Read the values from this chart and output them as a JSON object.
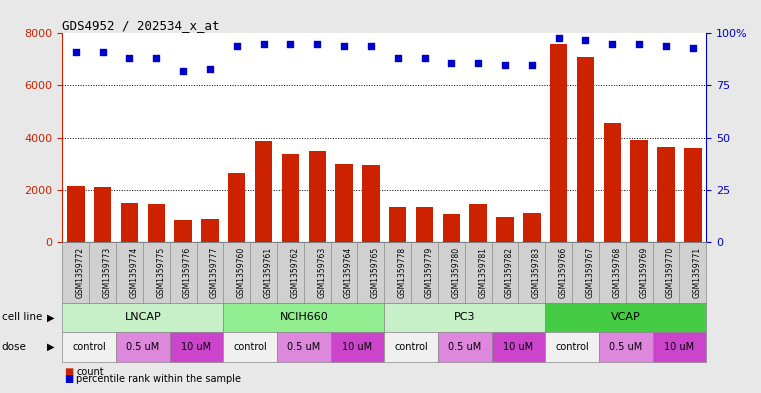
{
  "title": "GDS4952 / 202534_x_at",
  "samples": [
    "GSM1359772",
    "GSM1359773",
    "GSM1359774",
    "GSM1359775",
    "GSM1359776",
    "GSM1359777",
    "GSM1359760",
    "GSM1359761",
    "GSM1359762",
    "GSM1359763",
    "GSM1359764",
    "GSM1359765",
    "GSM1359778",
    "GSM1359779",
    "GSM1359780",
    "GSM1359781",
    "GSM1359782",
    "GSM1359783",
    "GSM1359766",
    "GSM1359767",
    "GSM1359768",
    "GSM1359769",
    "GSM1359770",
    "GSM1359771"
  ],
  "counts": [
    2150,
    2100,
    1500,
    1450,
    850,
    870,
    2650,
    3850,
    3350,
    3500,
    3000,
    2950,
    1350,
    1350,
    1050,
    1450,
    950,
    1100,
    7600,
    7100,
    4550,
    3900,
    3650,
    3600
  ],
  "percentiles": [
    91,
    91,
    88,
    88,
    82,
    83,
    94,
    95,
    95,
    95,
    94,
    94,
    88,
    88,
    86,
    86,
    85,
    85,
    98,
    97,
    95,
    95,
    94,
    93
  ],
  "cell_lines": [
    {
      "name": "LNCAP",
      "start": 0,
      "end": 6,
      "color": "#c8f0c8"
    },
    {
      "name": "NCIH660",
      "start": 6,
      "end": 12,
      "color": "#90ee90"
    },
    {
      "name": "PC3",
      "start": 12,
      "end": 18,
      "color": "#c8f0c8"
    },
    {
      "name": "VCAP",
      "start": 18,
      "end": 24,
      "color": "#44cc44"
    }
  ],
  "dose_groups": [
    {
      "label": "control",
      "start": 0,
      "end": 2,
      "color": "#f8f8f8"
    },
    {
      "label": "0.5 uM",
      "start": 2,
      "end": 4,
      "color": "#dd88dd"
    },
    {
      "label": "10 uM",
      "start": 4,
      "end": 6,
      "color": "#cc55cc"
    },
    {
      "label": "control",
      "start": 6,
      "end": 8,
      "color": "#f8f8f8"
    },
    {
      "label": "0.5 uM",
      "start": 8,
      "end": 10,
      "color": "#dd88dd"
    },
    {
      "label": "10 uM",
      "start": 10,
      "end": 12,
      "color": "#cc55cc"
    },
    {
      "label": "control",
      "start": 12,
      "end": 14,
      "color": "#f8f8f8"
    },
    {
      "label": "0.5 uM",
      "start": 14,
      "end": 16,
      "color": "#dd88dd"
    },
    {
      "label": "10 uM",
      "start": 16,
      "end": 18,
      "color": "#cc55cc"
    },
    {
      "label": "control",
      "start": 18,
      "end": 20,
      "color": "#f8f8f8"
    },
    {
      "label": "0.5 uM",
      "start": 20,
      "end": 22,
      "color": "#dd88dd"
    },
    {
      "label": "10 uM",
      "start": 22,
      "end": 24,
      "color": "#cc55cc"
    }
  ],
  "bar_color": "#cc2200",
  "dot_color": "#0000cc",
  "left_ylim": [
    0,
    8000
  ],
  "right_ylim": [
    0,
    100
  ],
  "left_yticks": [
    0,
    2000,
    4000,
    6000,
    8000
  ],
  "right_yticks": [
    0,
    25,
    50,
    75,
    100
  ],
  "bg_color": "#e8e8e8",
  "plot_bg": "#ffffff",
  "sample_box_color": "#d0d0d0",
  "left_label_color": "#cc2200",
  "right_label_color": "#0000cc"
}
